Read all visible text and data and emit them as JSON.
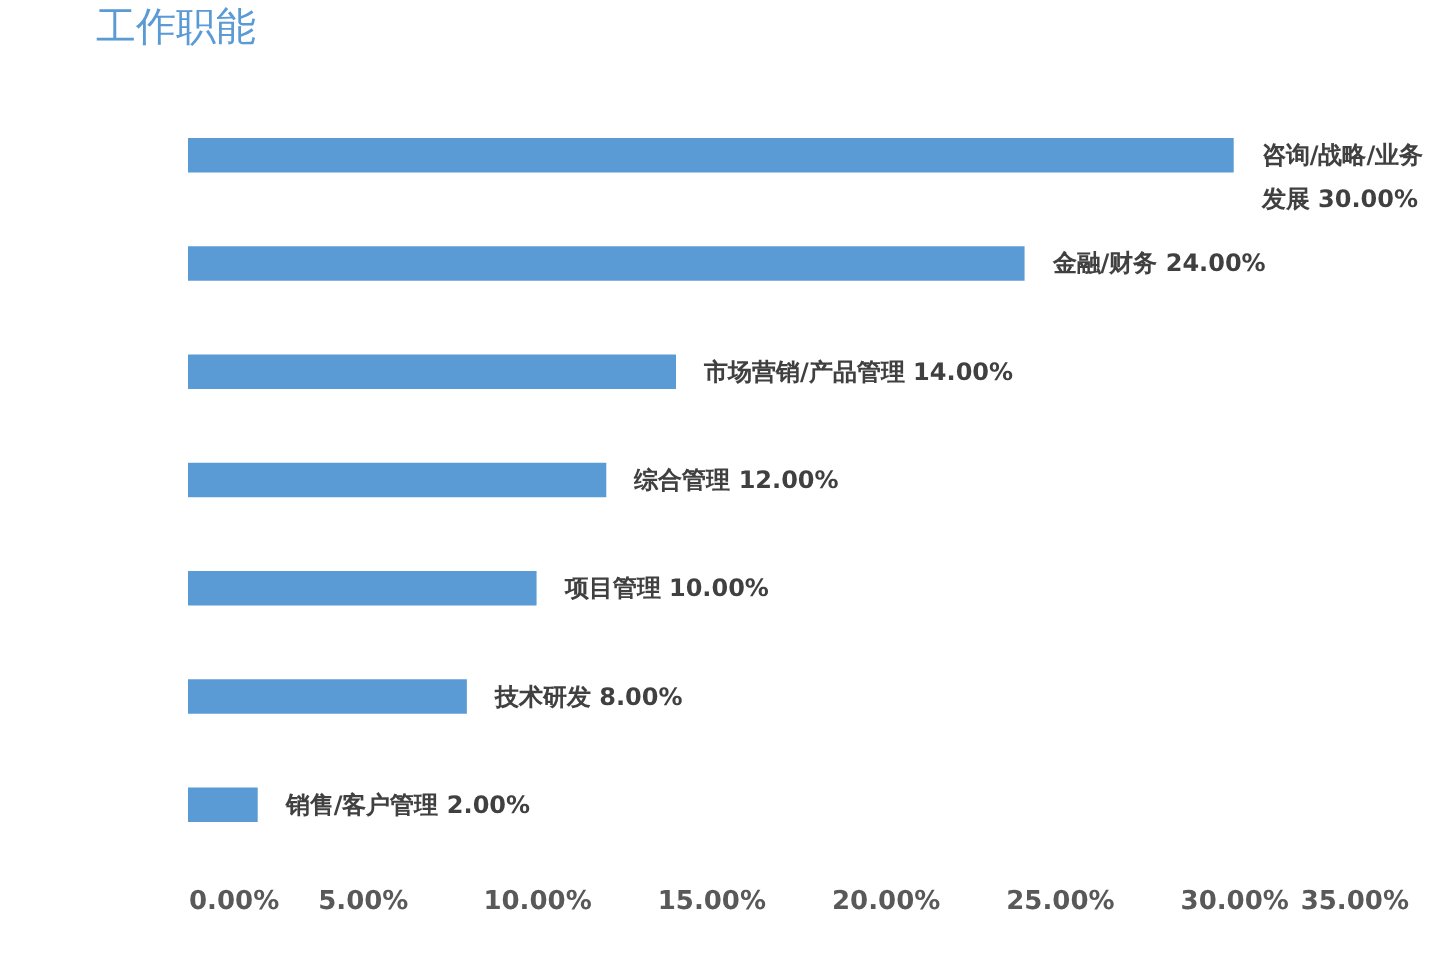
{
  "chart_data": {
    "type": "bar",
    "orientation": "horizontal",
    "title": "工作职能",
    "categories": [
      "咨询/战略/业务发展",
      "金融/财务",
      "市场营销/产品管理",
      "综合管理",
      "项目管理",
      "技术研发",
      "销售/客户管理"
    ],
    "values": [
      30,
      24,
      14,
      12,
      10,
      8,
      2
    ],
    "value_labels": [
      "30.00%",
      "24.00%",
      "14.00%",
      "12.00%",
      "10.00%",
      "8.00%",
      "2.00%"
    ],
    "color": "#5b9bd5",
    "xlim": [
      0,
      35
    ],
    "xticks": [
      {
        "value": 0,
        "label": "0.00%"
      },
      {
        "value": 5,
        "label": "5.00%"
      },
      {
        "value": 10,
        "label": "10.00%"
      },
      {
        "value": 15,
        "label": "15.00%"
      },
      {
        "value": 20,
        "label": "20.00%"
      },
      {
        "value": 25,
        "label": "25.00%"
      },
      {
        "value": 30,
        "label": "30.00%"
      },
      {
        "value": 35,
        "label": "35.00%"
      }
    ],
    "tick_labels": "x",
    "grid": false
  }
}
